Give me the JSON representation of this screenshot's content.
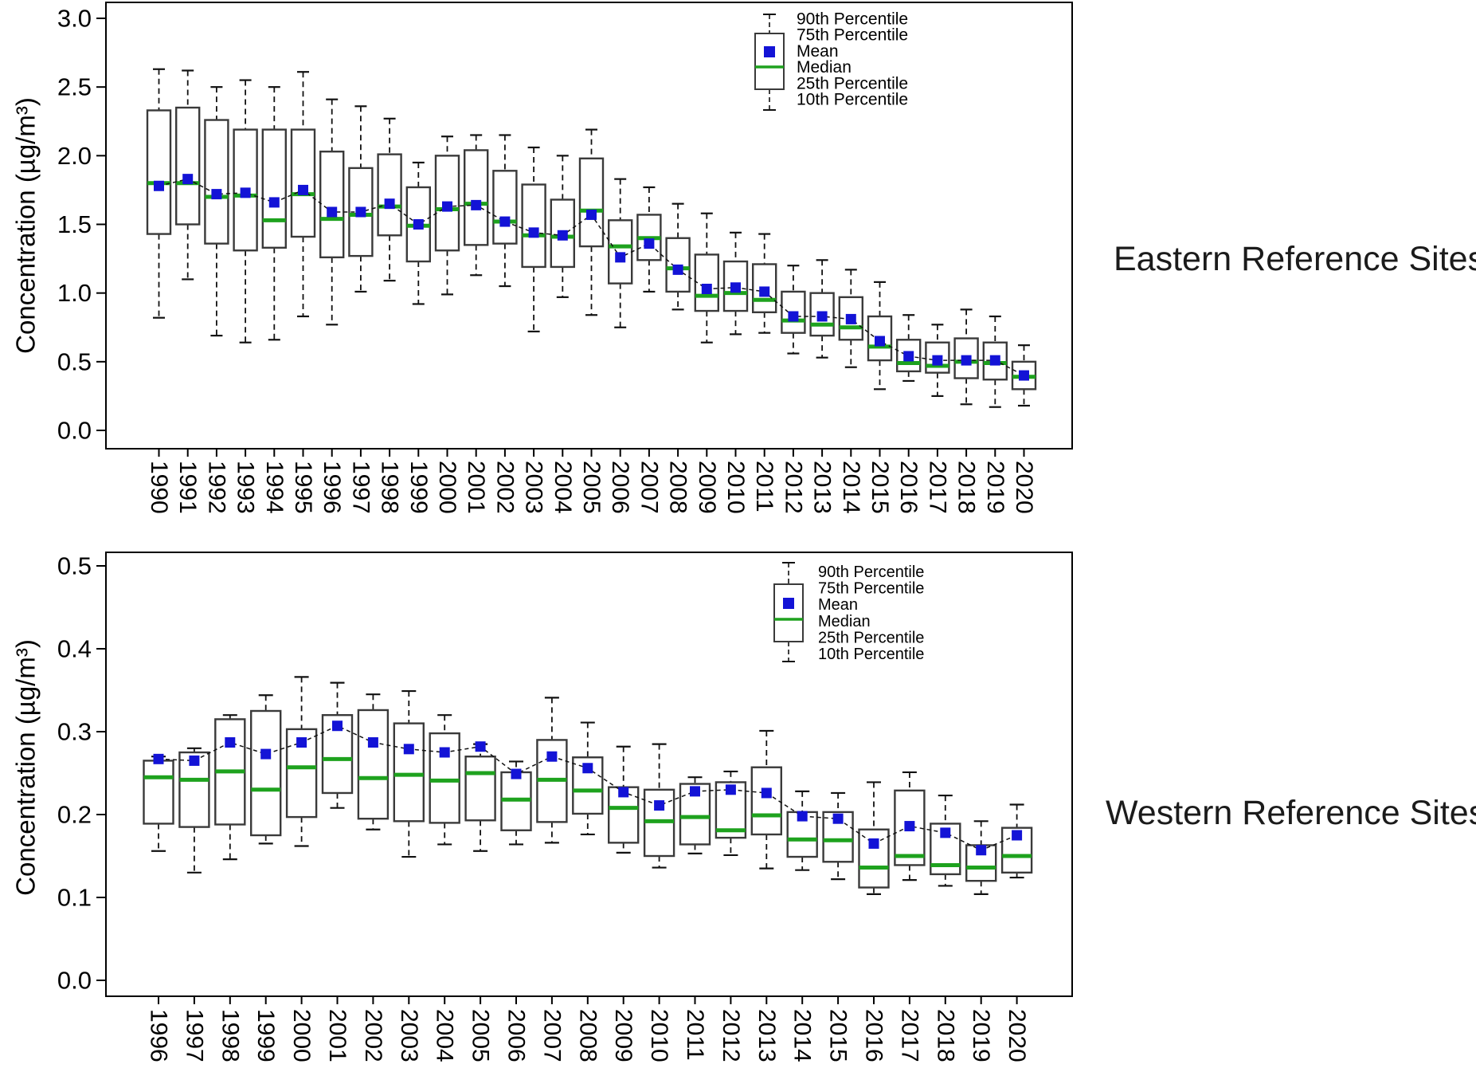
{
  "figure": {
    "background": "#ffffff",
    "colors": {
      "mean_marker": "#1313d6",
      "median_line": "#1ea21e",
      "box_stroke": "#3a3a3a",
      "whisker": "#111111",
      "mean_line": "#111111",
      "text": "#000000"
    }
  },
  "chart_data": [
    {
      "type": "boxplot",
      "side_label": "Eastern Reference Sites",
      "ylabel": "Concentration (µg/m³)",
      "ylim": [
        0.0,
        3.0
      ],
      "ytick_step": 0.5,
      "ytick_labels": [
        "0.0",
        "0.5",
        "1.0",
        "1.5",
        "2.0",
        "2.5",
        "3.0"
      ],
      "legend": [
        "90th Percentile",
        "75th Percentile",
        "Mean",
        "Median",
        "25th Percentile",
        "10th Percentile"
      ],
      "categories": [
        "1990",
        "1991",
        "1992",
        "1993",
        "1994",
        "1995",
        "1996",
        "1997",
        "1998",
        "1999",
        "2000",
        "2001",
        "2002",
        "2003",
        "2004",
        "2005",
        "2006",
        "2007",
        "2008",
        "2009",
        "2010",
        "2011",
        "2012",
        "2013",
        "2014",
        "2015",
        "2016",
        "2017",
        "2018",
        "2019",
        "2020"
      ],
      "p90": [
        2.63,
        2.62,
        2.5,
        2.55,
        2.5,
        2.61,
        2.41,
        2.36,
        2.27,
        1.95,
        2.14,
        2.15,
        2.15,
        2.06,
        2.0,
        2.19,
        1.83,
        1.77,
        1.65,
        1.58,
        1.44,
        1.43,
        1.2,
        1.24,
        1.17,
        1.08,
        0.84,
        0.77,
        0.88,
        0.83,
        0.62
      ],
      "p75": [
        2.33,
        2.35,
        2.26,
        2.19,
        2.19,
        2.19,
        2.03,
        1.91,
        2.01,
        1.77,
        2.0,
        2.04,
        1.89,
        1.79,
        1.68,
        1.98,
        1.53,
        1.57,
        1.4,
        1.28,
        1.23,
        1.21,
        1.01,
        1.0,
        0.97,
        0.83,
        0.66,
        0.64,
        0.67,
        0.64,
        0.5
      ],
      "mean": [
        1.78,
        1.83,
        1.72,
        1.73,
        1.66,
        1.75,
        1.59,
        1.59,
        1.65,
        1.5,
        1.63,
        1.64,
        1.52,
        1.44,
        1.42,
        1.57,
        1.26,
        1.36,
        1.17,
        1.03,
        1.04,
        1.01,
        0.83,
        0.83,
        0.81,
        0.65,
        0.54,
        0.51,
        0.51,
        0.51,
        0.4
      ],
      "median": [
        1.8,
        1.8,
        1.7,
        1.71,
        1.53,
        1.72,
        1.54,
        1.57,
        1.63,
        1.49,
        1.61,
        1.65,
        1.52,
        1.42,
        1.41,
        1.6,
        1.34,
        1.4,
        1.18,
        0.98,
        1.0,
        0.95,
        0.8,
        0.77,
        0.75,
        0.61,
        0.49,
        0.47,
        0.5,
        0.49,
        0.39
      ],
      "p25": [
        1.43,
        1.5,
        1.36,
        1.31,
        1.33,
        1.41,
        1.26,
        1.27,
        1.42,
        1.23,
        1.31,
        1.35,
        1.36,
        1.19,
        1.19,
        1.34,
        1.07,
        1.24,
        1.01,
        0.87,
        0.87,
        0.86,
        0.71,
        0.69,
        0.66,
        0.51,
        0.43,
        0.42,
        0.38,
        0.37,
        0.3
      ],
      "p10": [
        0.82,
        1.1,
        0.69,
        0.64,
        0.66,
        0.83,
        0.77,
        1.01,
        1.09,
        0.92,
        0.99,
        1.13,
        1.05,
        0.72,
        0.97,
        0.84,
        0.75,
        1.01,
        0.88,
        0.64,
        0.7,
        0.71,
        0.56,
        0.53,
        0.46,
        0.3,
        0.36,
        0.25,
        0.19,
        0.17,
        0.18
      ]
    },
    {
      "type": "boxplot",
      "side_label": "Western Reference Sites",
      "ylabel": "Concentration (µg/m³)",
      "ylim": [
        0.0,
        0.5
      ],
      "ytick_step": 0.1,
      "ytick_labels": [
        "0.0",
        "0.1",
        "0.2",
        "0.3",
        "0.4",
        "0.5"
      ],
      "legend": [
        "90th Percentile",
        "75th Percentile",
        "Mean",
        "Median",
        "25th Percentile",
        "10th Percentile"
      ],
      "categories": [
        "1996",
        "1997",
        "1998",
        "1999",
        "2000",
        "2001",
        "2002",
        "2003",
        "2004",
        "2005",
        "2006",
        "2007",
        "2008",
        "2009",
        "2010",
        "2011",
        "2012",
        "2013",
        "2014",
        "2015",
        "2016",
        "2017",
        "2018",
        "2019",
        "2020"
      ],
      "p90": [
        0.27,
        0.28,
        0.32,
        0.344,
        0.366,
        0.359,
        0.345,
        0.349,
        0.32,
        0.285,
        0.264,
        0.341,
        0.311,
        0.282,
        0.285,
        0.245,
        0.252,
        0.301,
        0.228,
        0.226,
        0.239,
        0.251,
        0.223,
        0.192,
        0.212
      ],
      "p75": [
        0.265,
        0.275,
        0.315,
        0.325,
        0.303,
        0.32,
        0.326,
        0.31,
        0.298,
        0.27,
        0.251,
        0.29,
        0.269,
        0.233,
        0.23,
        0.237,
        0.239,
        0.257,
        0.203,
        0.203,
        0.182,
        0.229,
        0.189,
        0.163,
        0.184
      ],
      "mean": [
        0.267,
        0.265,
        0.287,
        0.273,
        0.287,
        0.307,
        0.287,
        0.279,
        0.275,
        0.282,
        0.249,
        0.27,
        0.256,
        0.227,
        0.211,
        0.228,
        0.23,
        0.226,
        0.198,
        0.195,
        0.165,
        0.186,
        0.178,
        0.157,
        0.175
      ],
      "median": [
        0.245,
        0.242,
        0.252,
        0.23,
        0.257,
        0.267,
        0.244,
        0.248,
        0.241,
        0.25,
        0.218,
        0.242,
        0.229,
        0.208,
        0.192,
        0.197,
        0.181,
        0.199,
        0.17,
        0.169,
        0.136,
        0.15,
        0.139,
        0.136,
        0.15
      ],
      "p25": [
        0.189,
        0.185,
        0.188,
        0.175,
        0.197,
        0.226,
        0.195,
        0.192,
        0.19,
        0.193,
        0.181,
        0.191,
        0.201,
        0.166,
        0.15,
        0.164,
        0.172,
        0.176,
        0.149,
        0.143,
        0.112,
        0.139,
        0.128,
        0.12,
        0.13
      ],
      "p10": [
        0.156,
        0.13,
        0.146,
        0.165,
        0.162,
        0.208,
        0.182,
        0.149,
        0.164,
        0.156,
        0.164,
        0.166,
        0.176,
        0.154,
        0.136,
        0.153,
        0.151,
        0.135,
        0.133,
        0.122,
        0.104,
        0.121,
        0.114,
        0.104,
        0.124
      ]
    }
  ]
}
